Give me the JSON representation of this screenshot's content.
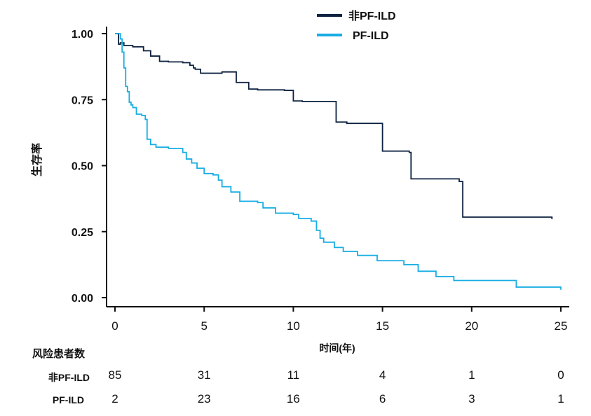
{
  "chart_data": {
    "type": "line",
    "subtype": "kaplan-meier",
    "title": "",
    "xlabel": "时间(年)",
    "ylabel": "生存率",
    "xlim": [
      0,
      25
    ],
    "ylim": [
      0,
      1
    ],
    "x_ticks": [
      "0",
      "5",
      "10",
      "15",
      "20",
      "25"
    ],
    "y_ticks": [
      "1.00",
      "0.75",
      "0.50",
      "0.25",
      "0.00"
    ],
    "grid": false,
    "legend_position": "top-center",
    "series": [
      {
        "name": "非PF-ILD",
        "color": "#0d2240",
        "x": [
          0,
          0.2,
          0.3,
          0.5,
          1.0,
          1.6,
          2.0,
          2.5,
          3.0,
          3.8,
          4.2,
          4.4,
          4.5,
          4.8,
          6.0,
          6.8,
          7.5,
          8.0,
          9.5,
          10.0,
          10.5,
          12.4,
          13.0,
          15.0,
          16.5,
          16.6,
          19.3,
          19.5,
          24.5
        ],
        "y": [
          1.0,
          0.96,
          0.965,
          0.955,
          0.95,
          0.935,
          0.915,
          0.895,
          0.893,
          0.89,
          0.88,
          0.87,
          0.865,
          0.85,
          0.855,
          0.815,
          0.79,
          0.787,
          0.785,
          0.745,
          0.743,
          0.665,
          0.66,
          0.555,
          0.55,
          0.45,
          0.44,
          0.305,
          0.297
        ]
      },
      {
        "name": "PF-ILD",
        "color": "#18ade3",
        "x": [
          0,
          0.3,
          0.4,
          0.5,
          0.6,
          0.7,
          0.8,
          0.9,
          1.0,
          1.2,
          1.5,
          1.7,
          1.8,
          2.0,
          2.3,
          2.5,
          3.0,
          3.8,
          4.0,
          4.3,
          4.6,
          5.0,
          5.5,
          5.8,
          6.0,
          6.5,
          7.0,
          8.0,
          8.3,
          9.0,
          10.0,
          10.3,
          11.0,
          11.3,
          11.5,
          11.7,
          12.3,
          12.8,
          13.6,
          14.7,
          16.2,
          17.0,
          18.0,
          19.0,
          22.5,
          25.0
        ],
        "y": [
          1.0,
          0.98,
          0.93,
          0.87,
          0.8,
          0.78,
          0.74,
          0.73,
          0.72,
          0.695,
          0.69,
          0.675,
          0.6,
          0.58,
          0.57,
          0.57,
          0.565,
          0.55,
          0.525,
          0.51,
          0.49,
          0.47,
          0.465,
          0.445,
          0.42,
          0.4,
          0.365,
          0.36,
          0.34,
          0.32,
          0.315,
          0.3,
          0.29,
          0.255,
          0.225,
          0.21,
          0.19,
          0.175,
          0.16,
          0.14,
          0.125,
          0.1,
          0.08,
          0.065,
          0.04,
          0.03
        ]
      }
    ]
  },
  "risk_table": {
    "title": "风险患者数",
    "rows": [
      {
        "label": "非PF-ILD",
        "values": [
          "85",
          "31",
          "11",
          "4",
          "1",
          "0"
        ]
      },
      {
        "label": "PF-ILD",
        "values": [
          "2",
          "23",
          "16",
          "6",
          "3",
          "1"
        ]
      }
    ]
  }
}
